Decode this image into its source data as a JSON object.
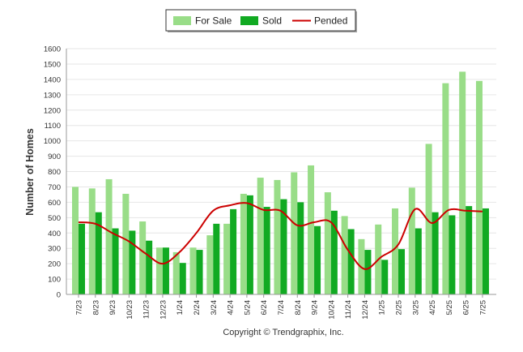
{
  "chart_data": {
    "type": "bar",
    "title": "",
    "xlabel": "",
    "ylabel": "Number of Homes",
    "ylim": [
      0,
      1600
    ],
    "yticks": [
      0,
      100,
      200,
      300,
      400,
      500,
      600,
      700,
      800,
      900,
      1000,
      1100,
      1200,
      1300,
      1400,
      1500,
      1600
    ],
    "grid": true,
    "legend_position": "top-center",
    "categories": [
      "7/23",
      "8/23",
      "9/23",
      "10/23",
      "11/23",
      "12/23",
      "1/24",
      "2/24",
      "3/24",
      "4/24",
      "5/24",
      "6/24",
      "7/24",
      "8/24",
      "9/24",
      "10/24",
      "11/24",
      "12/24",
      "1/25",
      "2/25",
      "3/25",
      "4/25",
      "5/25",
      "6/25",
      "7/25"
    ],
    "series": [
      {
        "name": "For Sale",
        "type": "bar",
        "color": "#99dd88",
        "values": [
          700,
          690,
          750,
          655,
          475,
          305,
          275,
          305,
          385,
          460,
          655,
          760,
          745,
          795,
          840,
          665,
          510,
          360,
          455,
          560,
          695,
          980,
          1375,
          1450,
          1390
        ]
      },
      {
        "name": "Sold",
        "type": "bar",
        "color": "#11aa22",
        "values": [
          460,
          535,
          430,
          415,
          350,
          305,
          205,
          290,
          460,
          555,
          645,
          570,
          620,
          600,
          445,
          545,
          425,
          290,
          225,
          295,
          430,
          535,
          515,
          575,
          560
        ]
      },
      {
        "name": "Pended",
        "type": "line",
        "color": "#cc0000",
        "values": [
          470,
          460,
          400,
          345,
          265,
          200,
          275,
          400,
          545,
          580,
          595,
          550,
          545,
          450,
          470,
          470,
          290,
          165,
          245,
          325,
          555,
          465,
          550,
          545,
          540
        ]
      }
    ],
    "annotations": [
      "Copyright © Trendgraphix, Inc."
    ]
  }
}
